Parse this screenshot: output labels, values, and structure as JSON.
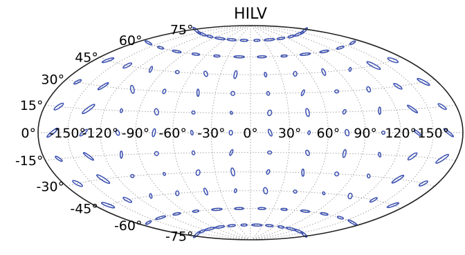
{
  "chart_data": {
    "type": "scatter",
    "projection": "hammer-aitoff",
    "title": "HILV",
    "xlabel": "",
    "ylabel": "",
    "grid": true,
    "xlim": [
      -180,
      180
    ],
    "ylim": [
      -90,
      90
    ],
    "x_tick_labels": [
      "-150°",
      "-120°",
      "-90°",
      "-60°",
      "-30°",
      "0°",
      "30°",
      "60°",
      "90°",
      "120°",
      "150°"
    ],
    "y_tick_labels": [
      "75°",
      "60°",
      "45°",
      "30°",
      "15°",
      "0°",
      "-15°",
      "-30°",
      "-45°",
      "-60°",
      "-75°"
    ],
    "marker": "ellipse",
    "color": "#3a4fb0",
    "series": [
      {
        "points": [
          {
            "lon": -165,
            "lat": 75
          },
          {
            "lon": -135,
            "lat": 75
          },
          {
            "lon": -105,
            "lat": 75
          },
          {
            "lon": -75,
            "lat": 75
          },
          {
            "lon": -45,
            "lat": 75
          },
          {
            "lon": -15,
            "lat": 75
          },
          {
            "lon": 15,
            "lat": 75
          },
          {
            "lon": 45,
            "lat": 75
          },
          {
            "lon": 75,
            "lat": 75
          },
          {
            "lon": 105,
            "lat": 75
          },
          {
            "lon": 135,
            "lat": 75
          },
          {
            "lon": 165,
            "lat": 75
          },
          {
            "lon": -165,
            "lat": 60
          },
          {
            "lon": -135,
            "lat": 60
          },
          {
            "lon": -105,
            "lat": 60
          },
          {
            "lon": -75,
            "lat": 60
          },
          {
            "lon": -45,
            "lat": 60
          },
          {
            "lon": -15,
            "lat": 60
          },
          {
            "lon": 15,
            "lat": 60
          },
          {
            "lon": 45,
            "lat": 60
          },
          {
            "lon": 75,
            "lat": 60
          },
          {
            "lon": 105,
            "lat": 60
          },
          {
            "lon": 135,
            "lat": 60
          },
          {
            "lon": 165,
            "lat": 60
          },
          {
            "lon": -165,
            "lat": 45
          },
          {
            "lon": -135,
            "lat": 45
          },
          {
            "lon": -105,
            "lat": 45
          },
          {
            "lon": -75,
            "lat": 45
          },
          {
            "lon": -45,
            "lat": 45
          },
          {
            "lon": -15,
            "lat": 45
          },
          {
            "lon": 15,
            "lat": 45
          },
          {
            "lon": 45,
            "lat": 45
          },
          {
            "lon": 75,
            "lat": 45
          },
          {
            "lon": 105,
            "lat": 45
          },
          {
            "lon": 135,
            "lat": 45
          },
          {
            "lon": 165,
            "lat": 45
          },
          {
            "lon": -165,
            "lat": 30
          },
          {
            "lon": -135,
            "lat": 30
          },
          {
            "lon": -105,
            "lat": 30
          },
          {
            "lon": -75,
            "lat": 30
          },
          {
            "lon": -45,
            "lat": 30
          },
          {
            "lon": -15,
            "lat": 30
          },
          {
            "lon": 15,
            "lat": 30
          },
          {
            "lon": 45,
            "lat": 30
          },
          {
            "lon": 75,
            "lat": 30
          },
          {
            "lon": 105,
            "lat": 30
          },
          {
            "lon": 135,
            "lat": 30
          },
          {
            "lon": 165,
            "lat": 30
          },
          {
            "lon": -165,
            "lat": 15
          },
          {
            "lon": -135,
            "lat": 15
          },
          {
            "lon": -105,
            "lat": 15
          },
          {
            "lon": -75,
            "lat": 15
          },
          {
            "lon": -45,
            "lat": 15
          },
          {
            "lon": -15,
            "lat": 15
          },
          {
            "lon": 15,
            "lat": 15
          },
          {
            "lon": 45,
            "lat": 15
          },
          {
            "lon": 75,
            "lat": 15
          },
          {
            "lon": 105,
            "lat": 15
          },
          {
            "lon": 135,
            "lat": 15
          },
          {
            "lon": 165,
            "lat": 15
          },
          {
            "lon": -165,
            "lat": 0
          },
          {
            "lon": -135,
            "lat": 0
          },
          {
            "lon": -105,
            "lat": 0
          },
          {
            "lon": -75,
            "lat": 0
          },
          {
            "lon": -45,
            "lat": 0
          },
          {
            "lon": -15,
            "lat": 0
          },
          {
            "lon": 15,
            "lat": 0
          },
          {
            "lon": 45,
            "lat": 0
          },
          {
            "lon": 75,
            "lat": 0
          },
          {
            "lon": 105,
            "lat": 0
          },
          {
            "lon": 135,
            "lat": 0
          },
          {
            "lon": 165,
            "lat": 0
          },
          {
            "lon": -165,
            "lat": -15
          },
          {
            "lon": -135,
            "lat": -15
          },
          {
            "lon": -105,
            "lat": -15
          },
          {
            "lon": -75,
            "lat": -15
          },
          {
            "lon": -45,
            "lat": -15
          },
          {
            "lon": -15,
            "lat": -15
          },
          {
            "lon": 15,
            "lat": -15
          },
          {
            "lon": 45,
            "lat": -15
          },
          {
            "lon": 75,
            "lat": -15
          },
          {
            "lon": 105,
            "lat": -15
          },
          {
            "lon": 135,
            "lat": -15
          },
          {
            "lon": 165,
            "lat": -15
          },
          {
            "lon": -165,
            "lat": -30
          },
          {
            "lon": -135,
            "lat": -30
          },
          {
            "lon": -105,
            "lat": -30
          },
          {
            "lon": -75,
            "lat": -30
          },
          {
            "lon": -45,
            "lat": -30
          },
          {
            "lon": -15,
            "lat": -30
          },
          {
            "lon": 15,
            "lat": -30
          },
          {
            "lon": 45,
            "lat": -30
          },
          {
            "lon": 75,
            "lat": -30
          },
          {
            "lon": 105,
            "lat": -30
          },
          {
            "lon": 135,
            "lat": -30
          },
          {
            "lon": 165,
            "lat": -30
          },
          {
            "lon": -165,
            "lat": -45
          },
          {
            "lon": -135,
            "lat": -45
          },
          {
            "lon": -105,
            "lat": -45
          },
          {
            "lon": -75,
            "lat": -45
          },
          {
            "lon": -45,
            "lat": -45
          },
          {
            "lon": -15,
            "lat": -45
          },
          {
            "lon": 15,
            "lat": -45
          },
          {
            "lon": 45,
            "lat": -45
          },
          {
            "lon": 75,
            "lat": -45
          },
          {
            "lon": 105,
            "lat": -45
          },
          {
            "lon": 135,
            "lat": -45
          },
          {
            "lon": 165,
            "lat": -45
          },
          {
            "lon": -165,
            "lat": -60
          },
          {
            "lon": -135,
            "lat": -60
          },
          {
            "lon": -105,
            "lat": -60
          },
          {
            "lon": -75,
            "lat": -60
          },
          {
            "lon": -45,
            "lat": -60
          },
          {
            "lon": -15,
            "lat": -60
          },
          {
            "lon": 15,
            "lat": -60
          },
          {
            "lon": 45,
            "lat": -60
          },
          {
            "lon": 75,
            "lat": -60
          },
          {
            "lon": 105,
            "lat": -60
          },
          {
            "lon": 135,
            "lat": -60
          },
          {
            "lon": 165,
            "lat": -60
          },
          {
            "lon": -165,
            "lat": -75
          },
          {
            "lon": -135,
            "lat": -75
          },
          {
            "lon": -105,
            "lat": -75
          },
          {
            "lon": -75,
            "lat": -75
          },
          {
            "lon": -45,
            "lat": -75
          },
          {
            "lon": -15,
            "lat": -75
          },
          {
            "lon": 15,
            "lat": -75
          },
          {
            "lon": 45,
            "lat": -75
          },
          {
            "lon": 75,
            "lat": -75
          },
          {
            "lon": 105,
            "lat": -75
          },
          {
            "lon": 135,
            "lat": -75
          },
          {
            "lon": 165,
            "lat": -75
          }
        ]
      }
    ]
  }
}
